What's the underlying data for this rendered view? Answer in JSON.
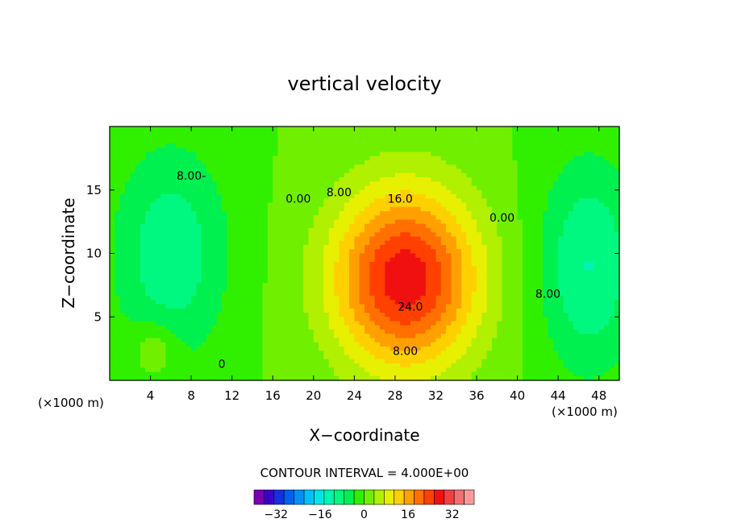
{
  "chart_data": {
    "type": "heatmap",
    "title": "vertical velocity",
    "xlabel": "X−coordinate",
    "ylabel": "Z−coordinate",
    "x_unit_left": "(×1000 m)",
    "x_unit_right": "(×1000 m)",
    "xlim": [
      0,
      50
    ],
    "ylim": [
      0,
      20
    ],
    "x_ticks": [
      4,
      8,
      12,
      16,
      20,
      24,
      28,
      32,
      36,
      40,
      44,
      48
    ],
    "y_ticks": [
      5,
      10,
      15
    ],
    "contour_interval_label": "CONTOUR INTERVAL = 4.000E+00",
    "contour_labels": [
      {
        "text": "0.00",
        "x": 18.5,
        "y": 14
      },
      {
        "text": "8.00",
        "x": 22.5,
        "y": 14.5
      },
      {
        "text": "16.0",
        "x": 28.5,
        "y": 14
      },
      {
        "text": "0.00",
        "x": 38.5,
        "y": 12.5
      },
      {
        "text": "8.00-",
        "x": 8,
        "y": 15.8
      },
      {
        "text": "24.0",
        "x": 29.5,
        "y": 5.5
      },
      {
        "text": "8.00",
        "x": 29,
        "y": 2
      },
      {
        "text": "8.00",
        "x": 43,
        "y": 6.5
      },
      {
        "text": "0",
        "x": 11,
        "y": 1
      }
    ],
    "features": [
      {
        "kind": "updraft",
        "center": [
          29,
          8
        ],
        "sx": 5.0,
        "sy": 5.0,
        "peak": 28
      },
      {
        "kind": "downdraft",
        "center": [
          6,
          10
        ],
        "sx": 4.0,
        "sy": 6.0,
        "peak": -10
      },
      {
        "kind": "downdraft",
        "center": [
          47,
          9
        ],
        "sx": 3.5,
        "sy": 6.0,
        "peak": -11
      },
      {
        "kind": "updraft",
        "center": [
          4.5,
          2.5
        ],
        "sx": 1.5,
        "sy": 1.5,
        "peak": 6
      }
    ],
    "colorbar": {
      "min": -40,
      "max": 40,
      "tick_labels": [
        "−32",
        "−16",
        "0",
        "16",
        "32"
      ],
      "tick_values": [
        -32,
        -16,
        0,
        16,
        32
      ],
      "colors": [
        "#7a00b0",
        "#3c00c8",
        "#1430e0",
        "#0060f0",
        "#0090f8",
        "#00c0ff",
        "#00e6e6",
        "#00f5b0",
        "#00f880",
        "#00f050",
        "#30f000",
        "#70f000",
        "#b0f000",
        "#e6f000",
        "#ffd000",
        "#ffa000",
        "#ff7000",
        "#ff4000",
        "#f01010",
        "#f04040",
        "#f07070",
        "#ff9a9a"
      ]
    },
    "background_color": "#ffffff"
  }
}
